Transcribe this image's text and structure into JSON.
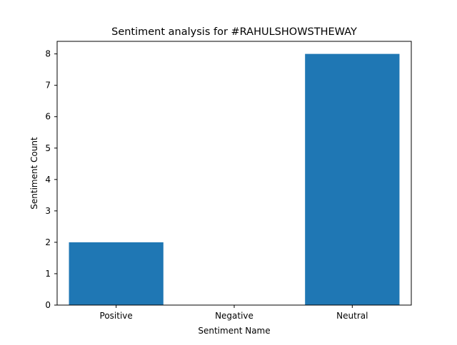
{
  "chart_data": {
    "type": "bar",
    "title": "Sentiment analysis for #RAHULSHOWSTHEWAY",
    "xlabel": "Sentiment Name",
    "ylabel": "Sentiment Count",
    "categories": [
      "Positive",
      "Negative",
      "Neutral"
    ],
    "values": [
      2,
      0,
      8
    ],
    "ylim": [
      0,
      8.4
    ],
    "yticks": [
      0,
      1,
      2,
      3,
      4,
      5,
      6,
      7,
      8
    ],
    "grid": false,
    "legend": "none",
    "bar_color": "#1f77b4"
  }
}
